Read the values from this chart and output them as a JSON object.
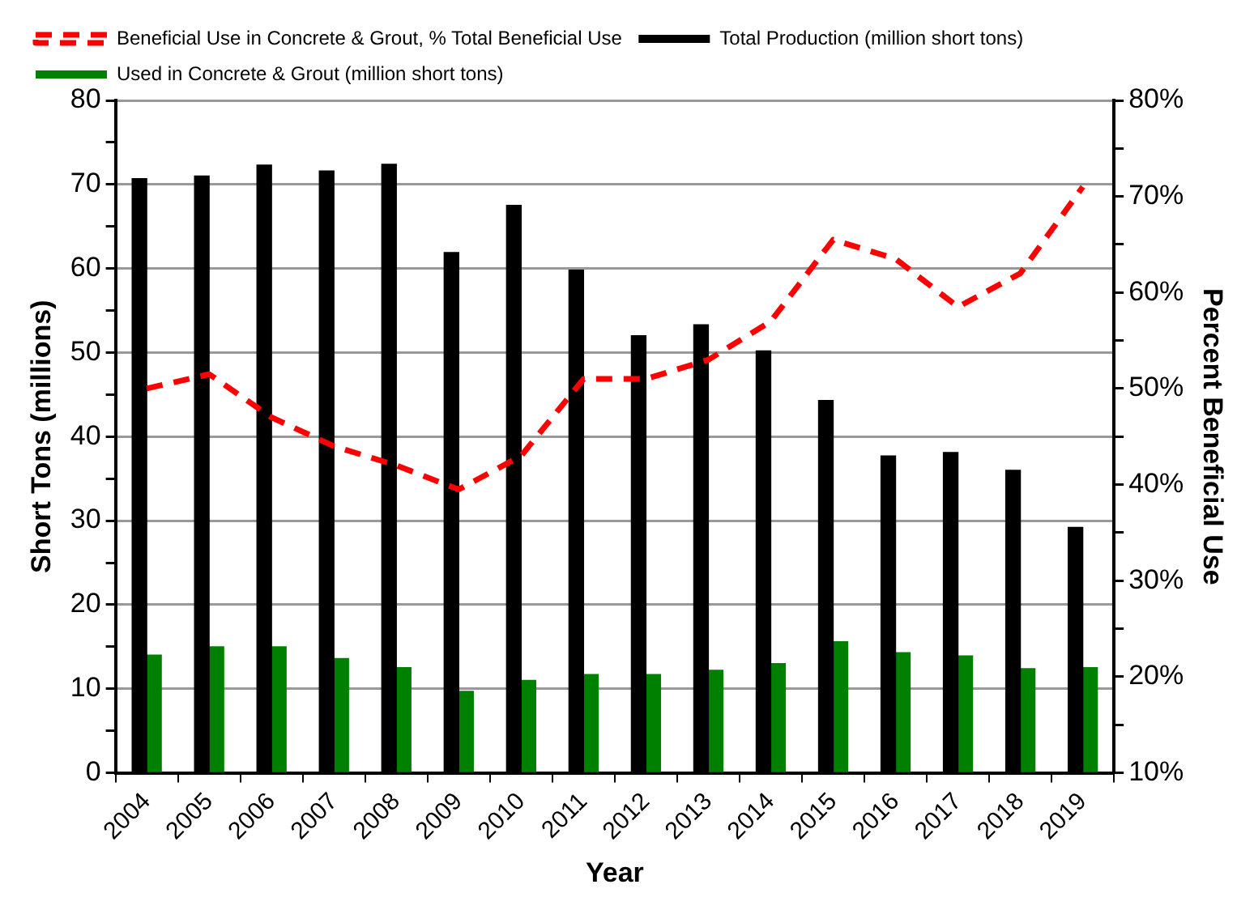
{
  "chart_data": {
    "type": "bar",
    "xlabel": "Year",
    "ylabel": "Short Tons (millions)",
    "y2label": "Percent Beneficial Use",
    "categories": [
      "2004",
      "2005",
      "2006",
      "2007",
      "2008",
      "2009",
      "2010",
      "2011",
      "2012",
      "2013",
      "2014",
      "2015",
      "2016",
      "2017",
      "2018",
      "2019"
    ],
    "series": [
      {
        "name": "Total Production (million short tons)",
        "color": "#000000",
        "values": [
          70.7,
          71,
          72.3,
          71.6,
          72.4,
          61.9,
          67.5,
          59.8,
          52,
          53.3,
          50.2,
          44.3,
          37.7,
          38.1,
          36,
          29.2
        ]
      },
      {
        "name": "Used in Concrete & Grout (million short tons)",
        "color": "#008000",
        "values": [
          14,
          15,
          15,
          13.6,
          12.5,
          9.7,
          11,
          11.7,
          11.7,
          12.2,
          13,
          15.6,
          14.3,
          13.9,
          12.4,
          12.5
        ]
      },
      {
        "name": "Beneficial Use in Concrete & Grout, % Total Beneficial Use",
        "type": "line",
        "axis": "y2",
        "color": "#ff0000",
        "line_style": "dashed",
        "values": [
          50,
          51.5,
          47,
          44,
          42,
          39.5,
          43,
          51,
          51,
          53,
          57,
          65.5,
          63.5,
          58.5,
          62,
          71
        ]
      }
    ],
    "ylim": [
      0,
      80
    ],
    "yticks": [
      0,
      {
        "value": 5,
        "label": null
      },
      10,
      {
        "value": 15,
        "label": null
      },
      20,
      {
        "value": 25,
        "label": null
      },
      30,
      {
        "value": 35,
        "label": null
      },
      40,
      {
        "value": 45,
        "label": null
      },
      50,
      {
        "value": 55,
        "label": null
      },
      60,
      {
        "value": 65,
        "label": null
      },
      70,
      {
        "value": 75,
        "label": null
      },
      80
    ],
    "y2lim": [
      10,
      80
    ],
    "y2ticks": [
      {
        "value": 10,
        "label": "10%"
      },
      {
        "value": 15,
        "label": null
      },
      {
        "value": 20,
        "label": "20%"
      },
      {
        "value": 25,
        "label": null
      },
      {
        "value": 30,
        "label": "30%"
      },
      {
        "value": 35,
        "label": null
      },
      {
        "value": 40,
        "label": "40%"
      },
      {
        "value": 45,
        "label": null
      },
      {
        "value": 50,
        "label": "50%"
      },
      {
        "value": 55,
        "label": null
      },
      {
        "value": 60,
        "label": "60%"
      },
      {
        "value": 65,
        "label": null
      },
      {
        "value": 70,
        "label": "70%"
      },
      {
        "value": 75,
        "label": null
      },
      {
        "value": 80,
        "label": "80%"
      }
    ],
    "grid": "y",
    "legend": "top",
    "marker": "none"
  }
}
